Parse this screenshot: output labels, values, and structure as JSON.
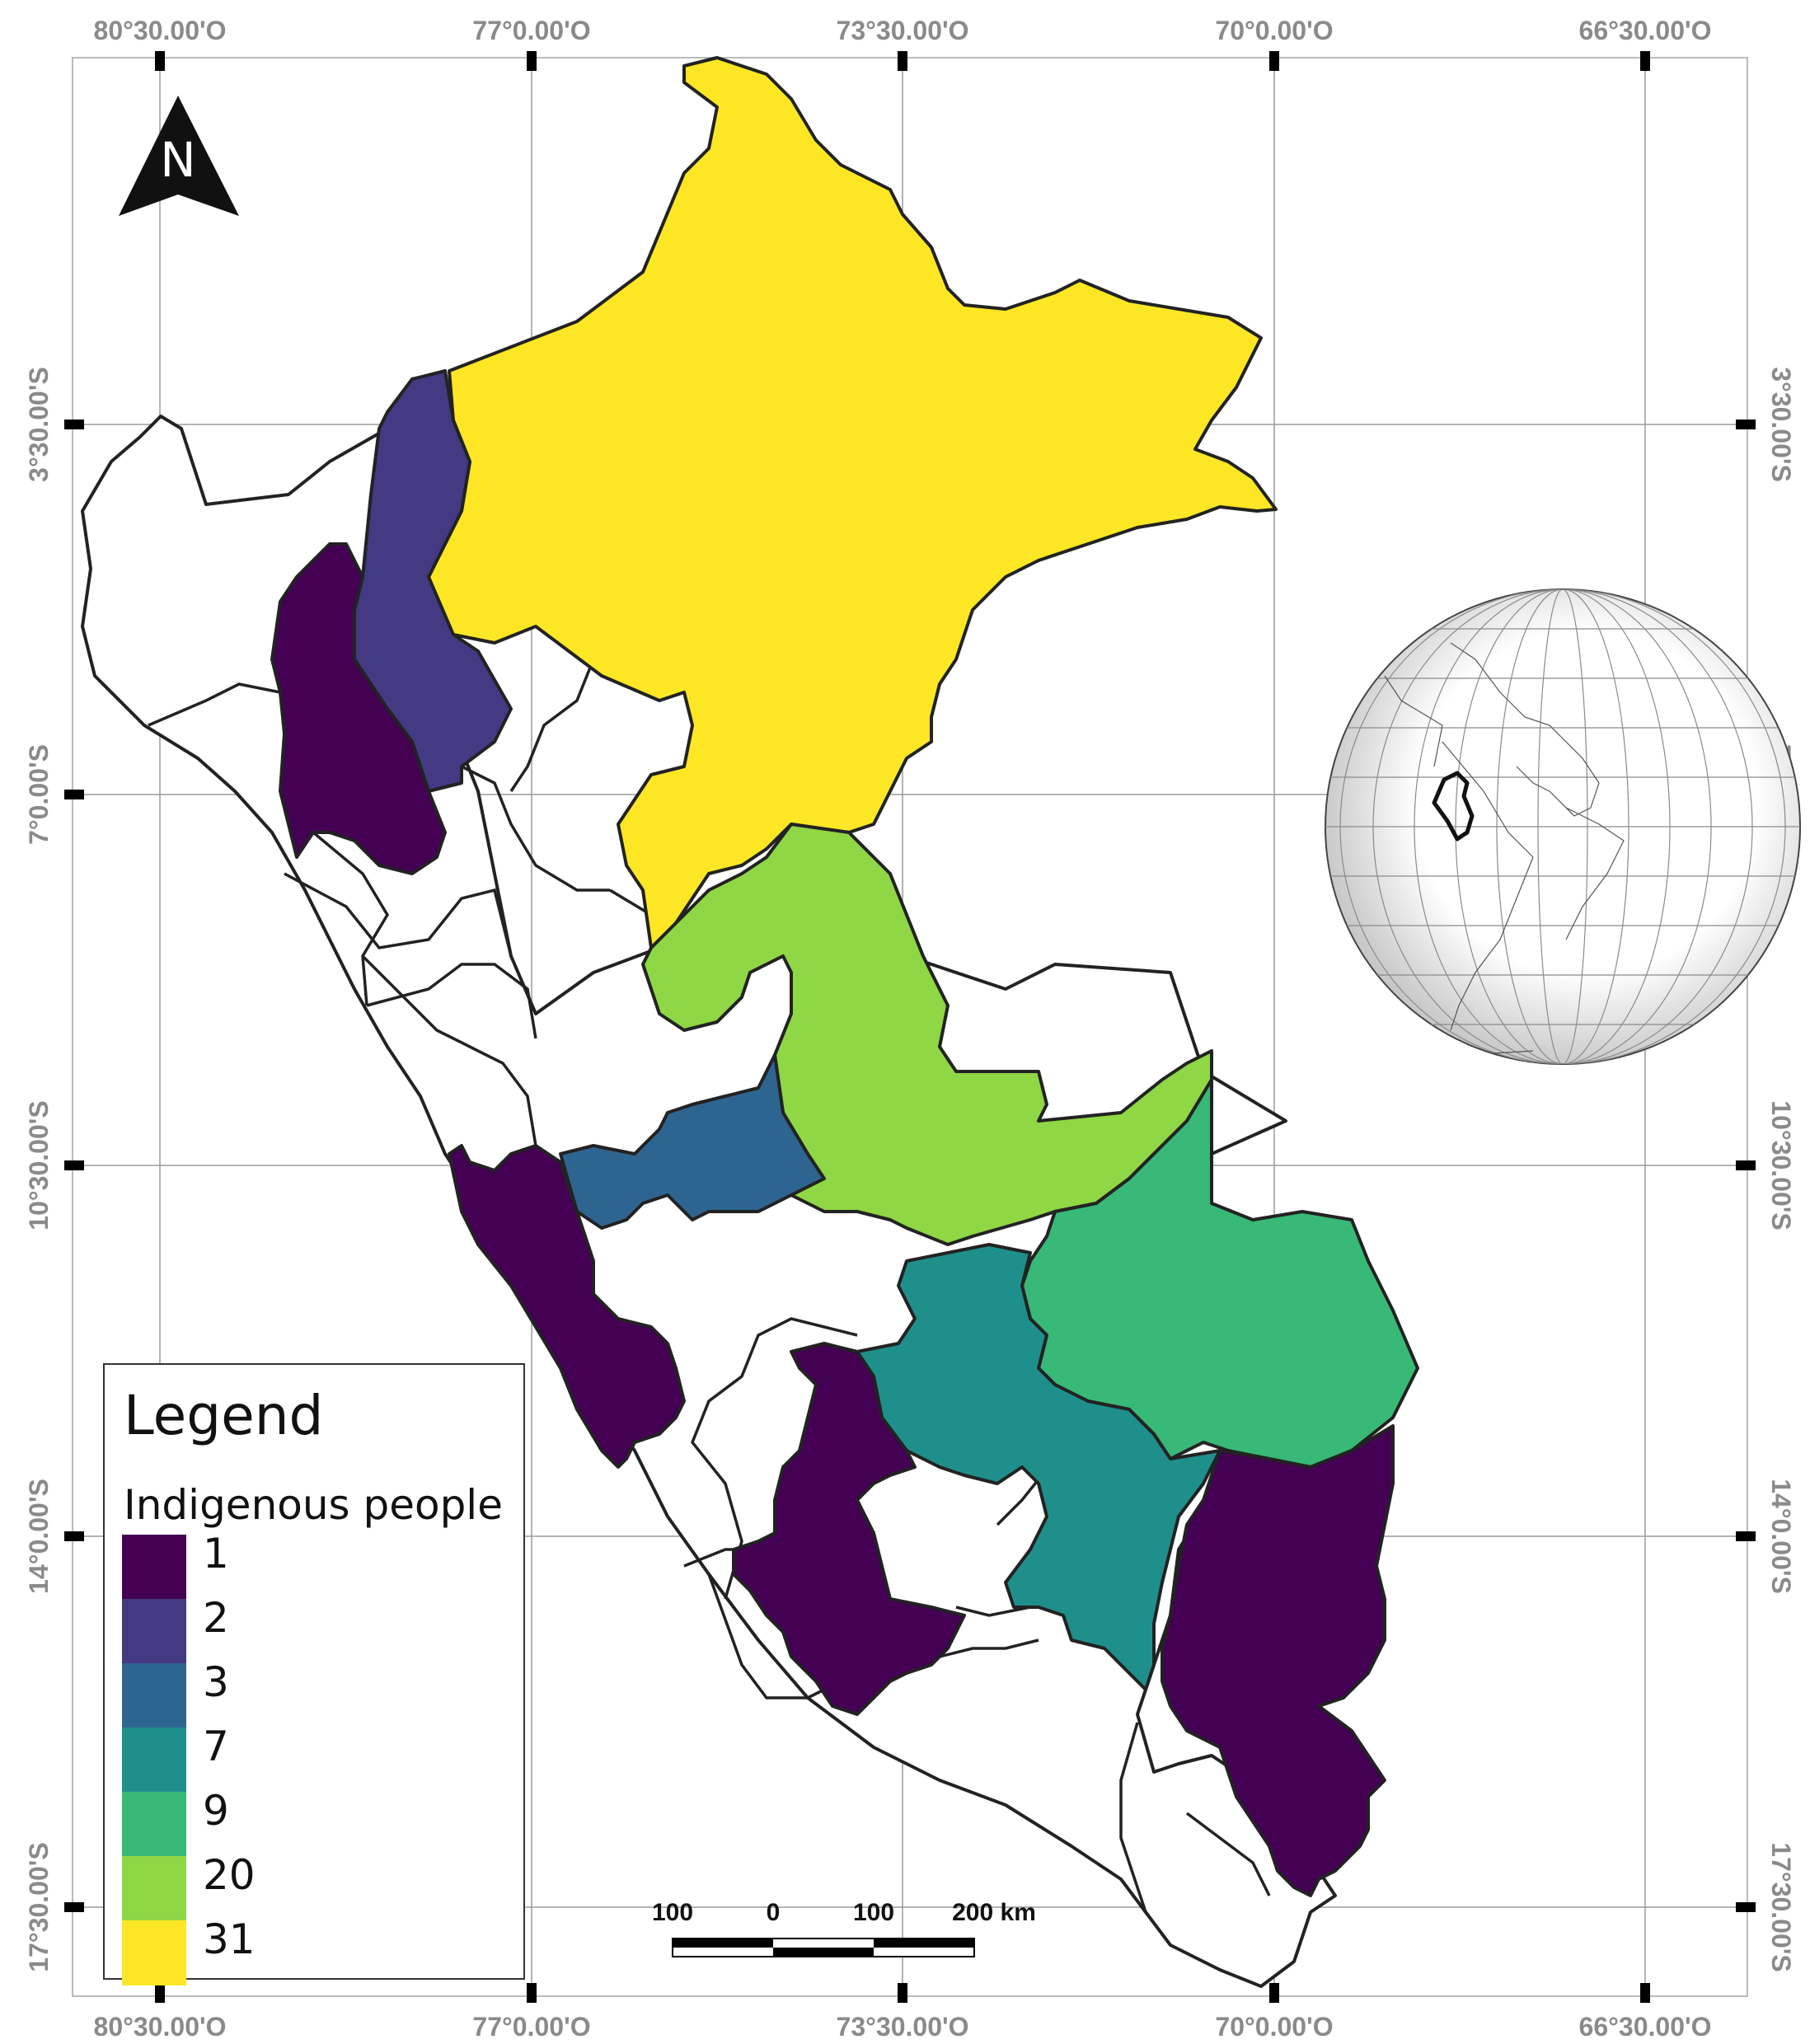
{
  "map": {
    "lon_labels": [
      "80°30.00'O",
      "77°0.00'O",
      "73°30.00'O",
      "70°0.00'O",
      "66°30.00'O"
    ],
    "lat_labels": [
      "3°30.00'S",
      "7°0.00'S",
      "10°30.00'S",
      "14°0.00'S",
      "17°30.00'S"
    ],
    "north_letter": "N",
    "scale_labels": [
      "100",
      "0",
      "100",
      "200 km"
    ],
    "legend": {
      "title": "Legend",
      "subtitle": "Indigenous people",
      "classes": [
        {
          "value": "1",
          "color": "#440154"
        },
        {
          "value": "2",
          "color": "#433a83"
        },
        {
          "value": "3",
          "color": "#2e6590"
        },
        {
          "value": "7",
          "color": "#1f8f8c"
        },
        {
          "value": "9",
          "color": "#38b977"
        },
        {
          "value": "20",
          "color": "#8fd744"
        },
        {
          "value": "31",
          "color": "#fde725"
        }
      ]
    },
    "regions": [
      {
        "name": "loreto",
        "class_value": "31",
        "color": "#fde725"
      },
      {
        "name": "ucayali",
        "class_value": "20",
        "color": "#8fd744"
      },
      {
        "name": "amazonas",
        "class_value": "2",
        "color": "#433a83"
      },
      {
        "name": "cajamarca",
        "class_value": "1",
        "color": "#440154"
      },
      {
        "name": "huanuco",
        "class_value": "3",
        "color": "#2e6590"
      },
      {
        "name": "madre-de-dios",
        "class_value": "9",
        "color": "#38b977"
      },
      {
        "name": "cusco",
        "class_value": "7",
        "color": "#1f8f8c"
      },
      {
        "name": "lima",
        "class_value": "1",
        "color": "#440154"
      },
      {
        "name": "ayacucho",
        "class_value": "1",
        "color": "#440154"
      },
      {
        "name": "puno",
        "class_value": "1",
        "color": "#440154"
      }
    ],
    "icons": {
      "north_arrow": "north-arrow-icon",
      "globe": "globe-inset-icon"
    }
  }
}
